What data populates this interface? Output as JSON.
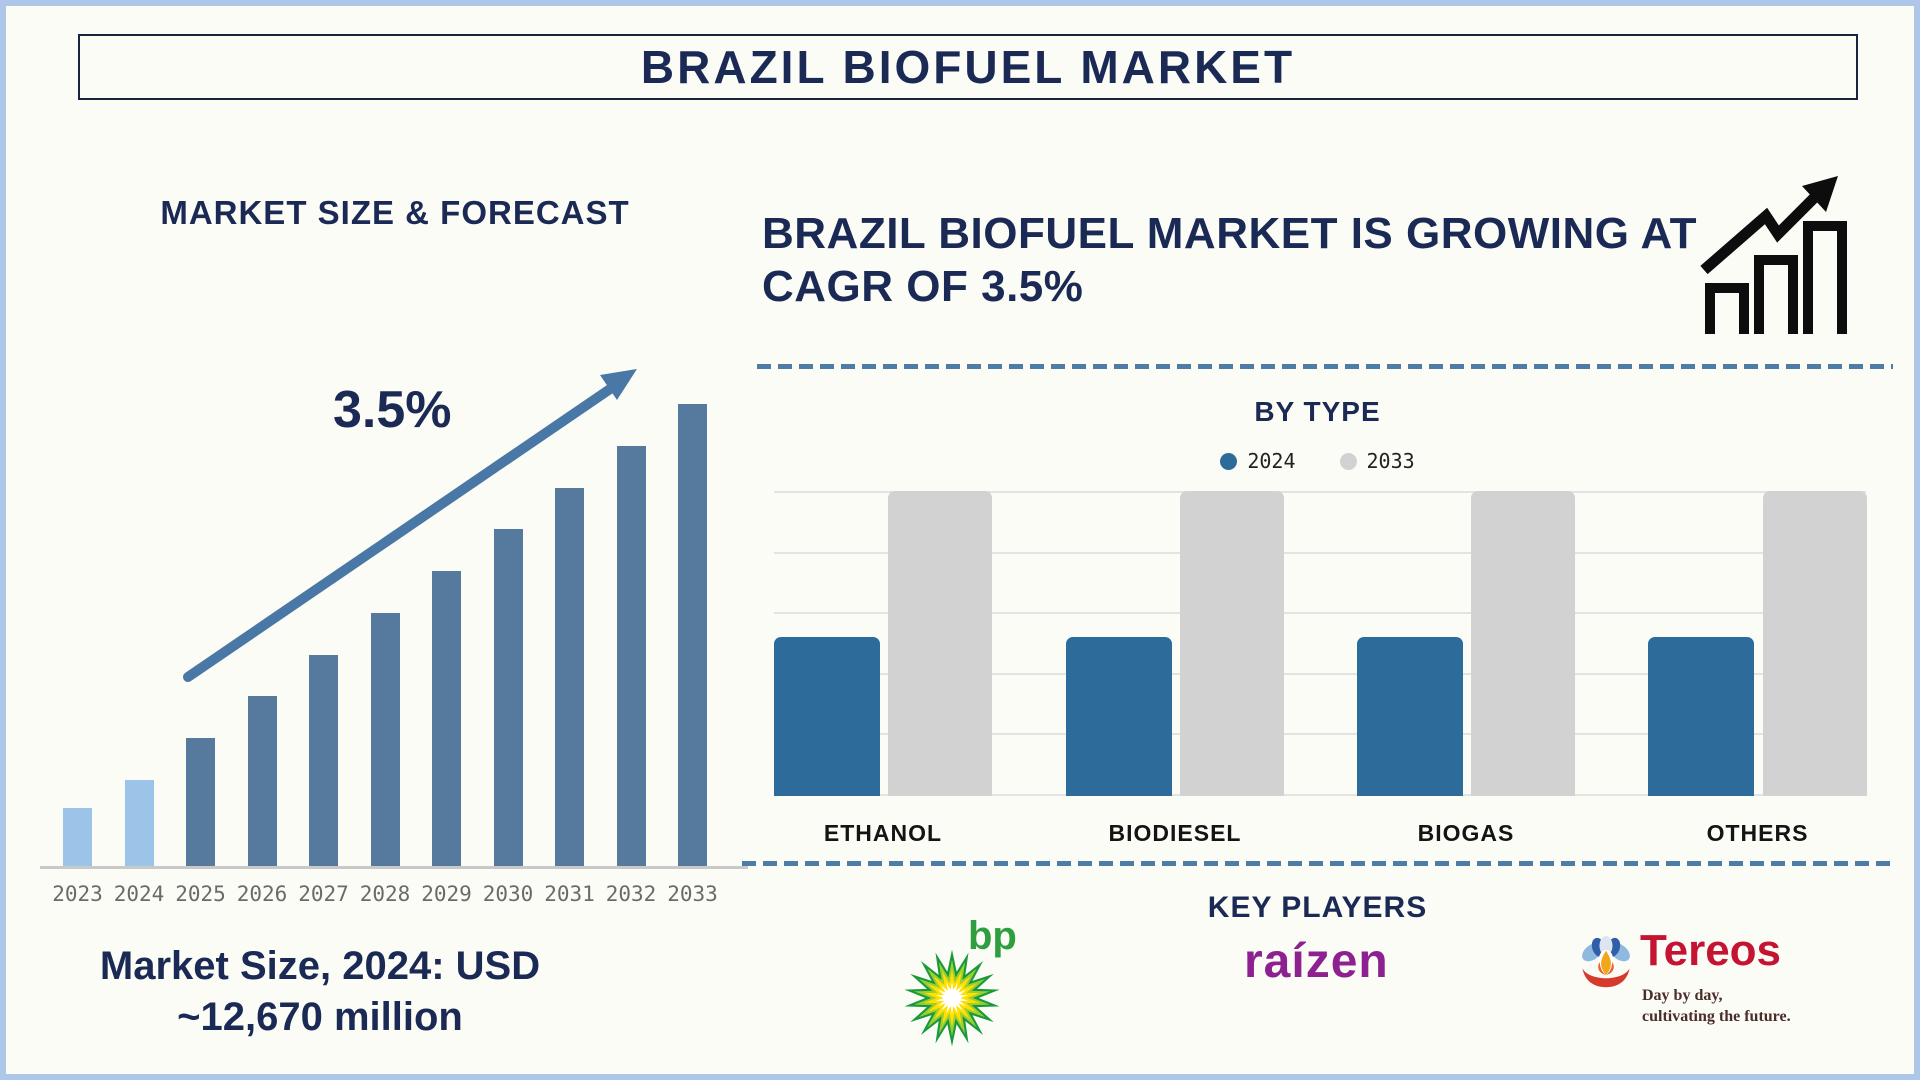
{
  "page": {
    "title": "BRAZIL BIOFUEL MARKET"
  },
  "left_panel": {
    "caption_line1": "Market Size, 2024: USD",
    "caption_line2": "~12,670 million"
  },
  "right_panel": {
    "heading": "BRAZIL BIOFUEL MARKET IS GROWING AT CAGR OF 3.5%",
    "key_players_title": "KEY PLAYERS",
    "players": {
      "bp_label": "bp",
      "raizen_label": "raízen",
      "tereos_label": "Tereos",
      "tereos_tagline_line1": "Day by day,",
      "tereos_tagline_line2": "cultivating the future."
    }
  },
  "chart_data": [
    {
      "type": "bar",
      "title": "MARKET SIZE & FORECAST",
      "categories": [
        "2023",
        "2024",
        "2025",
        "2026",
        "2027",
        "2028",
        "2029",
        "2030",
        "2031",
        "2032",
        "2033"
      ],
      "values_relative_pct": [
        13,
        19,
        28,
        37,
        46,
        55,
        64,
        73,
        82,
        91,
        100
      ],
      "highlight_light_years": [
        "2023",
        "2024"
      ],
      "annotation": "3.5%",
      "caption": "Market Size, 2024: USD ~12,670 million",
      "known_values": {
        "2024": "USD ~12,670 million"
      },
      "cagr_pct": 3.5,
      "xlabel": "",
      "ylabel": "",
      "value_axis_visible": false,
      "note": "stylized bars, heights read as % of tallest (2033) bar"
    },
    {
      "type": "bar",
      "title": "BY TYPE",
      "categories": [
        "ETHANOL",
        "BIODIESEL",
        "BIOGAS",
        "OTHERS"
      ],
      "series": [
        {
          "name": "2024",
          "color": "#2d6b9b",
          "values_relative_pct": [
            52,
            52,
            52,
            52
          ]
        },
        {
          "name": "2033",
          "color": "#d2d2d2",
          "values_relative_pct": [
            100,
            100,
            100,
            100
          ]
        }
      ],
      "legend_position": "top",
      "grid": true,
      "xlabel": "",
      "ylabel": "",
      "value_axis_visible": false,
      "note": "stylized bars, heights read as % of plot height"
    }
  ],
  "colors": {
    "navy_text": "#1b2a55",
    "bar_dark_blue": "#56799e",
    "bar_light_blue": "#9cc3e8",
    "right_bar_blue": "#2d6b9b",
    "right_bar_gray": "#d2d2d2",
    "arrow_blue": "#4a78a6",
    "dashed_line_blue": "#4d7ca6",
    "gridline_gray": "#e3e3e3",
    "axis_gray": "#c9c9c9",
    "year_label_gray": "#6a6a6a",
    "category_label_black": "#141414",
    "page_border_blue": "#aec6e8",
    "background": "#fcfcf7",
    "icon_black": "#0d0d0d",
    "bp_green": "#2f9e3f",
    "raizen_purple": "#8e2190",
    "tereos_red": "#c41432",
    "tereos_tagline_brown": "#4a2d28"
  }
}
